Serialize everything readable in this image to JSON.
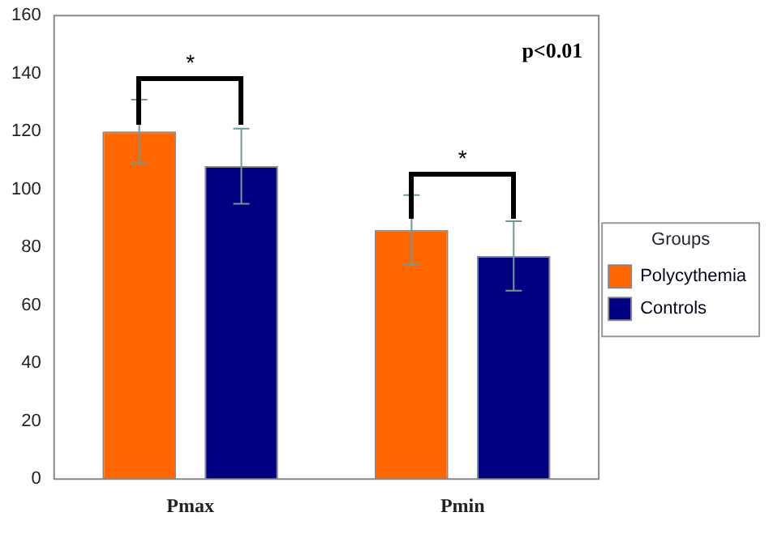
{
  "chart_data": {
    "type": "bar",
    "categories": [
      "Pmax",
      "Pmin"
    ],
    "series": [
      {
        "name": "Polycythemia",
        "color": "#ff6600",
        "values": [
          120,
          86
        ],
        "errors": [
          11,
          12
        ]
      },
      {
        "name": "Controls",
        "color": "#000080",
        "values": [
          108,
          77
        ],
        "errors": [
          13,
          12
        ]
      }
    ],
    "ylim": [
      0,
      160
    ],
    "yticks": [
      0,
      20,
      40,
      60,
      80,
      100,
      120,
      140,
      160
    ],
    "grid": false,
    "legend": "right",
    "legend_title": "Groups",
    "annotations": [
      "*",
      "*",
      "p<0.01"
    ]
  }
}
